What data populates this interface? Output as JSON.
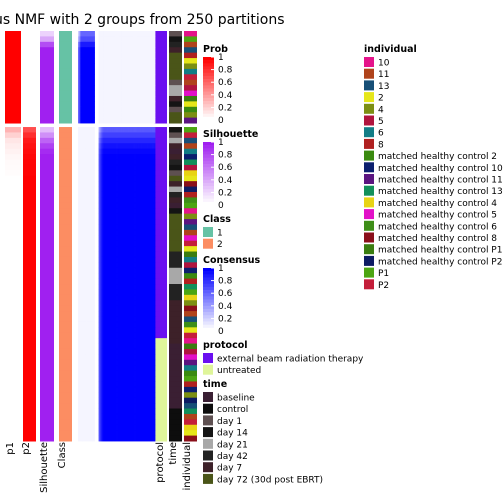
{
  "chart_data": {
    "type": "heatmap",
    "title": "us NMF with 2 groups from 250 partitions",
    "n_samples": 75,
    "n_class1": 17,
    "column_labels": [
      "p1",
      "p2",
      "Silhouette",
      "Class",
      "protocol",
      "time",
      "individual"
    ],
    "columns": {
      "p1": [
        1,
        1,
        1,
        1,
        1,
        1,
        1,
        1,
        1,
        1,
        1,
        1,
        1,
        1,
        1,
        1,
        1,
        0.3,
        0.18,
        0.1,
        0.07,
        0.05,
        0.03,
        0.02,
        0.015,
        0.01,
        0,
        0,
        0,
        0,
        0,
        0,
        0,
        0,
        0,
        0,
        0,
        0,
        0,
        0,
        0,
        0,
        0,
        0,
        0,
        0,
        0,
        0,
        0,
        0,
        0,
        0,
        0,
        0,
        0,
        0,
        0,
        0,
        0,
        0,
        0,
        0,
        0,
        0,
        0,
        0,
        0,
        0,
        0,
        0,
        0,
        0,
        0,
        0,
        0
      ],
      "p2": [
        0,
        0,
        0,
        0,
        0,
        0,
        0,
        0,
        0,
        0,
        0,
        0,
        0,
        0,
        0,
        0,
        0,
        0.7,
        0.82,
        0.9,
        0.93,
        0.95,
        0.97,
        0.98,
        0.985,
        0.99,
        1,
        1,
        1,
        1,
        1,
        1,
        1,
        1,
        1,
        1,
        1,
        1,
        1,
        1,
        1,
        1,
        1,
        1,
        1,
        1,
        1,
        1,
        1,
        1,
        1,
        1,
        1,
        1,
        1,
        1,
        1,
        1,
        1,
        1,
        1,
        1,
        1,
        1,
        1,
        1,
        1,
        1,
        1,
        1,
        1,
        1,
        1,
        1,
        1
      ],
      "silhouette": [
        0.2,
        0.4,
        0.8,
        1,
        1,
        1,
        1,
        1,
        1,
        1,
        1,
        1,
        1,
        1,
        1,
        1,
        1,
        0.3,
        0.5,
        0.7,
        0.85,
        0.95,
        1,
        1,
        1,
        1,
        1,
        1,
        1,
        1,
        1,
        1,
        1,
        1,
        1,
        1,
        1,
        1,
        1,
        1,
        1,
        1,
        1,
        1,
        1,
        1,
        1,
        1,
        1,
        1,
        1,
        1,
        1,
        1,
        1,
        1,
        1,
        1,
        1,
        1,
        1,
        1,
        1,
        1,
        1,
        1,
        1,
        1,
        1,
        1,
        1,
        1,
        1,
        1,
        1
      ],
      "class": [
        1,
        1,
        1,
        1,
        1,
        1,
        1,
        1,
        1,
        1,
        1,
        1,
        1,
        1,
        1,
        1,
        1,
        2,
        2,
        2,
        2,
        2,
        2,
        2,
        2,
        2,
        2,
        2,
        2,
        2,
        2,
        2,
        2,
        2,
        2,
        2,
        2,
        2,
        2,
        2,
        2,
        2,
        2,
        2,
        2,
        2,
        2,
        2,
        2,
        2,
        2,
        2,
        2,
        2,
        2,
        2,
        2,
        2,
        2,
        2,
        2,
        2,
        2,
        2,
        2,
        2,
        2,
        2,
        2,
        2,
        2,
        2,
        2,
        2,
        2
      ],
      "protocol": [
        "ebrt",
        "ebrt",
        "ebrt",
        "ebrt",
        "ebrt",
        "ebrt",
        "ebrt",
        "ebrt",
        "ebrt",
        "ebrt",
        "ebrt",
        "ebrt",
        "ebrt",
        "ebrt",
        "ebrt",
        "ebrt",
        "ebrt",
        "ebrt",
        "ebrt",
        "ebrt",
        "ebrt",
        "ebrt",
        "ebrt",
        "ebrt",
        "ebrt",
        "ebrt",
        "ebrt",
        "ebrt",
        "ebrt",
        "ebrt",
        "ebrt",
        "ebrt",
        "ebrt",
        "ebrt",
        "ebrt",
        "ebrt",
        "ebrt",
        "ebrt",
        "ebrt",
        "ebrt",
        "ebrt",
        "ebrt",
        "ebrt",
        "ebrt",
        "ebrt",
        "ebrt",
        "ebrt",
        "ebrt",
        "ebrt",
        "ebrt",
        "ebrt",
        "ebrt",
        "ebrt",
        "ebrt",
        "ebrt",
        "ebrt",
        "untr",
        "untr",
        "untr",
        "untr",
        "untr",
        "untr",
        "untr",
        "untr",
        "untr",
        "untr",
        "untr",
        "untr",
        "untr",
        "untr",
        "untr",
        "untr",
        "untr",
        "untr",
        "untr"
      ],
      "time": [
        "d1",
        "d14",
        "d42",
        "d7",
        "d72",
        "d72",
        "d72",
        "d72",
        "d72",
        "d1",
        "d21",
        "d21",
        "d7",
        "d14",
        "d1",
        "d72",
        "d72",
        "d14",
        "d1",
        "d21",
        "d7",
        "base",
        "d7",
        "d42",
        "d14",
        "d1",
        "d72",
        "d7",
        "d21",
        "d42",
        "d7",
        "base",
        "d14",
        "d72",
        "d72",
        "d72",
        "d72",
        "d72",
        "d72",
        "d72",
        "d42",
        "d42",
        "d42",
        "d21",
        "d21",
        "d21",
        "d42",
        "d42",
        "d42",
        "d7",
        "d7",
        "d7",
        "d7",
        "d7",
        "d7",
        "d7",
        "d7",
        "base",
        "base",
        "base",
        "base",
        "base",
        "base",
        "base",
        "base",
        "base",
        "base",
        "base",
        "base",
        "ctrl",
        "ctrl",
        "ctrl",
        "ctrl",
        "ctrl",
        "ctrl"
      ],
      "individual": [
        "10",
        "P1",
        "11",
        "13",
        "8",
        "2",
        "4",
        "6",
        "P2",
        "11",
        "5",
        "mhc5",
        "mhcP1",
        "2",
        "mhc2",
        "4",
        "mhc11",
        "P1",
        "P2",
        "13",
        "11",
        "6",
        "mhc10",
        "mhc13",
        "5",
        "mhc4",
        "2",
        "mhc8",
        "mhcP2",
        "8",
        "mhc6",
        "P1",
        "10",
        "4",
        "mhc11",
        "13",
        "11",
        "mhc5",
        "P2",
        "2",
        "mhcP1",
        "6",
        "5",
        "mhc10",
        "mhc2",
        "8",
        "mhc13",
        "P1",
        "mhc4",
        "4",
        "mhc8",
        "11",
        "13",
        "mhc6",
        "2",
        "P2",
        "10",
        "mhcP1",
        "5",
        "mhc5",
        "mhc11",
        "6",
        "mhc2",
        "P1",
        "8",
        "mhc10",
        "4",
        "mhcP2",
        "13",
        "mhc13",
        "11",
        "P2",
        "mhc4",
        "2",
        "mhc8"
      ]
    },
    "consensus_blocks": [
      [
        1,
        17
      ],
      [
        18,
        75
      ]
    ],
    "legends": {
      "prob": {
        "title": "Prob",
        "ticks": [
          "1",
          "0.8",
          "0.6",
          "0.4",
          "0.2",
          "0"
        ]
      },
      "silhouette": {
        "title": "Silhouette",
        "ticks": [
          "1",
          "0.8",
          "0.6",
          "0.4",
          "0.2",
          "0"
        ]
      },
      "class": {
        "title": "Class",
        "items": [
          {
            "label": "1",
            "color": "#66C2A5"
          },
          {
            "label": "2",
            "color": "#FC8D62"
          }
        ]
      },
      "consensus": {
        "title": "Consensus",
        "ticks": [
          "1",
          "0.8",
          "0.6",
          "0.4",
          "0.2",
          "0"
        ]
      },
      "protocol": {
        "title": "protocol",
        "items": [
          {
            "key": "ebrt",
            "label": "external beam radiation therapy",
            "color": "#6A0FF0"
          },
          {
            "key": "untr",
            "label": "untreated",
            "color": "#DFF59A"
          }
        ]
      },
      "time": {
        "title": "time",
        "items": [
          {
            "key": "base",
            "label": "baseline",
            "color": "#3A1F33"
          },
          {
            "key": "ctrl",
            "label": "control",
            "color": "#0D0D0D"
          },
          {
            "key": "d1",
            "label": "day 1",
            "color": "#5E5051"
          },
          {
            "key": "d14",
            "label": "day 14",
            "color": "#141414"
          },
          {
            "key": "d21",
            "label": "day 21",
            "color": "#A8A8A8"
          },
          {
            "key": "d42",
            "label": "day 42",
            "color": "#222222"
          },
          {
            "key": "d7",
            "label": "day 7",
            "color": "#3D2129"
          },
          {
            "key": "d72",
            "label": "day 72 (30d post EBRT)",
            "color": "#4A5518"
          }
        ]
      },
      "individual": {
        "title": "individual",
        "items": [
          {
            "key": "10",
            "label": "10",
            "color": "#E4138A"
          },
          {
            "key": "11",
            "label": "11",
            "color": "#B0431B"
          },
          {
            "key": "13",
            "label": "13",
            "color": "#174F77"
          },
          {
            "key": "2",
            "label": "2",
            "color": "#E6E61A"
          },
          {
            "key": "4",
            "label": "4",
            "color": "#7C8F13"
          },
          {
            "key": "5",
            "label": "5",
            "color": "#B0143E"
          },
          {
            "key": "6",
            "label": "6",
            "color": "#127D86"
          },
          {
            "key": "8",
            "label": "8",
            "color": "#B02020"
          },
          {
            "key": "mhc2",
            "label": "matched healthy control 2",
            "color": "#3A8A10"
          },
          {
            "key": "mhc10",
            "label": "matched healthy control 10",
            "color": "#0B1F6E"
          },
          {
            "key": "mhc11",
            "label": "matched healthy control 11",
            "color": "#5B1580"
          },
          {
            "key": "mhc13",
            "label": "matched healthy control 13",
            "color": "#12905A"
          },
          {
            "key": "mhc4",
            "label": "matched healthy control 4",
            "color": "#E8D315"
          },
          {
            "key": "mhc5",
            "label": "matched healthy control 5",
            "color": "#E210C8"
          },
          {
            "key": "mhc6",
            "label": "matched healthy control 6",
            "color": "#3E8E18"
          },
          {
            "key": "mhc8",
            "label": "matched healthy control 8",
            "color": "#8A0F1A"
          },
          {
            "key": "mhcP1",
            "label": "matched healthy control P1",
            "color": "#3A7D10"
          },
          {
            "key": "mhcP2",
            "label": "matched healthy control P2",
            "color": "#0D1B63"
          },
          {
            "key": "P1",
            "label": "P1",
            "color": "#4CA512"
          },
          {
            "key": "P2",
            "label": "P2",
            "color": "#C41E3A"
          }
        ]
      }
    },
    "colors": {
      "prob_high": "#FF0000",
      "prob_low": "#FFFFFF",
      "silhouette_high": "#A020F0",
      "silhouette_low": "#FFFFFF",
      "consensus_high": "#0000FF",
      "consensus_low": "#FFFFFF"
    }
  }
}
